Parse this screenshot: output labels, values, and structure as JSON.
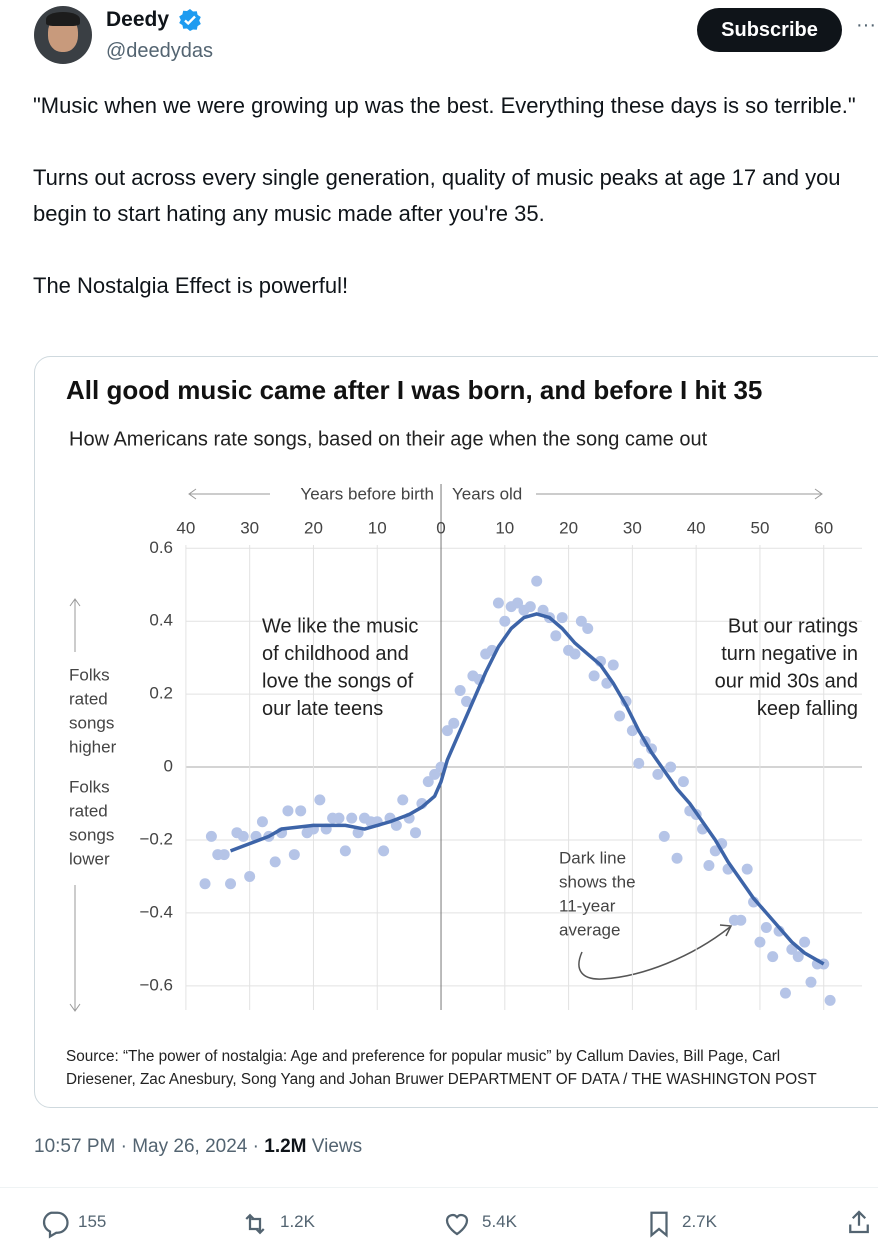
{
  "tweet": {
    "author": "Deedy",
    "handle": "@deedydas",
    "subscribe": "Subscribe",
    "more": "···",
    "paragraphs": [
      "\"Music when we were growing up was the best. Everything these days is so terrible.\"",
      "Turns out across every single generation, quality of music peaks at age 17 and you begin to start hating any music made after you're 35.",
      "The Nostalgia Effect is powerful!"
    ],
    "time": "10:57 PM",
    "separator": "·",
    "date": "May 26, 2024",
    "views": "1.2M",
    "views_label": "Views",
    "replies": "155",
    "reposts": "1.2K",
    "likes": "5.4K",
    "bookmarks": "2.7K"
  },
  "chart_data": {
    "type": "scatter",
    "title": "All good music came after I was born, and before I hit 35",
    "subtitle": "How Americans rate songs, based on their age when the song came out",
    "x_label_left": "Years before birth",
    "x_label_right": "Years old",
    "y_label_upper": [
      "Folks",
      "rated",
      "songs",
      "higher"
    ],
    "y_label_lower": [
      "Folks",
      "rated",
      "songs",
      "lower"
    ],
    "xlim": [
      -45,
      66
    ],
    "xticks": [
      {
        "value": -40,
        "label": "40"
      },
      {
        "value": -30,
        "label": "30"
      },
      {
        "value": -20,
        "label": "20"
      },
      {
        "value": -10,
        "label": "10"
      },
      0,
      10,
      20,
      30,
      40,
      50,
      60
    ],
    "ylim": [
      -0.68,
      0.62
    ],
    "yticks": [
      0.6,
      0.4,
      0.2,
      0,
      {
        "value": -0.2,
        "label": "−0.2"
      },
      {
        "value": -0.4,
        "label": "−0.4"
      },
      {
        "value": -0.6,
        "label": "−0.6"
      }
    ],
    "grid": true,
    "series": [
      {
        "style": "markers",
        "color": "#b5c4e7",
        "x": [
          -37,
          -36,
          -35,
          -34,
          -33,
          -32,
          -31,
          -30,
          -29,
          -28,
          -27,
          -26,
          -25,
          -24,
          -23,
          -22,
          -21,
          -20,
          -19,
          -18,
          -17,
          -16,
          -15,
          -14,
          -13,
          -12,
          -11,
          -10,
          -9,
          -8,
          -7,
          -6,
          -5,
          -4,
          -3,
          -2,
          -1,
          0,
          1,
          2,
          3,
          4,
          5,
          6,
          7,
          8,
          9,
          10,
          11,
          12,
          13,
          14,
          15,
          16,
          17,
          18,
          19,
          20,
          21,
          22,
          23,
          24,
          25,
          26,
          27,
          28,
          29,
          30,
          31,
          32,
          33,
          34,
          35,
          36,
          37,
          38,
          39,
          40,
          41,
          42,
          43,
          44,
          45,
          46,
          47,
          48,
          49,
          50,
          51,
          52,
          53,
          54,
          55,
          56,
          57,
          58,
          59,
          60,
          61
        ],
        "values": [
          -0.32,
          -0.19,
          -0.24,
          -0.24,
          -0.32,
          -0.18,
          -0.19,
          -0.3,
          -0.19,
          -0.15,
          -0.19,
          -0.26,
          -0.18,
          -0.12,
          -0.24,
          -0.12,
          -0.18,
          -0.17,
          -0.09,
          -0.17,
          -0.14,
          -0.14,
          -0.23,
          -0.14,
          -0.18,
          -0.14,
          -0.15,
          -0.15,
          -0.23,
          -0.14,
          -0.16,
          -0.09,
          -0.14,
          -0.18,
          -0.1,
          -0.04,
          -0.02,
          0,
          0.1,
          0.12,
          0.21,
          0.18,
          0.25,
          0.24,
          0.31,
          0.32,
          0.45,
          0.4,
          0.44,
          0.45,
          0.43,
          0.44,
          0.51,
          0.43,
          0.41,
          0.36,
          0.41,
          0.32,
          0.31,
          0.4,
          0.38,
          0.25,
          0.29,
          0.23,
          0.28,
          0.14,
          0.18,
          0.1,
          0.01,
          0.07,
          0.05,
          -0.02,
          -0.19,
          0,
          -0.25,
          -0.04,
          -0.12,
          -0.13,
          -0.17,
          -0.27,
          -0.23,
          -0.21,
          -0.28,
          -0.42,
          -0.42,
          -0.28,
          -0.37,
          -0.48,
          -0.44,
          -0.52,
          -0.45,
          -0.62,
          -0.5,
          -0.52,
          -0.48,
          -0.59,
          -0.54,
          -0.54,
          -0.64
        ]
      },
      {
        "style": "line",
        "color": "#3d64a8",
        "x": [
          -33,
          -30,
          -27,
          -25,
          -20,
          -15,
          -12,
          -10,
          -8,
          -5,
          -3,
          -1,
          0,
          1,
          3,
          5,
          7,
          9,
          11,
          13,
          15,
          17,
          19,
          21,
          23,
          25,
          27,
          29,
          31,
          33,
          35,
          37,
          39,
          41,
          43,
          45,
          47,
          49,
          51,
          53,
          55,
          57,
          59,
          60
        ],
        "values": [
          -0.23,
          -0.21,
          -0.19,
          -0.17,
          -0.16,
          -0.16,
          -0.17,
          -0.16,
          -0.15,
          -0.13,
          -0.11,
          -0.08,
          -0.04,
          0.02,
          0.1,
          0.18,
          0.26,
          0.33,
          0.38,
          0.41,
          0.42,
          0.41,
          0.38,
          0.34,
          0.31,
          0.28,
          0.23,
          0.17,
          0.1,
          0.04,
          -0.01,
          -0.06,
          -0.1,
          -0.15,
          -0.2,
          -0.26,
          -0.31,
          -0.36,
          -0.4,
          -0.44,
          -0.48,
          -0.51,
          -0.53,
          -0.54
        ]
      }
    ],
    "annotations": [
      {
        "lines": [
          "We like the music",
          "of childhood and",
          "love the songs of",
          "our late teens"
        ]
      },
      {
        "lines": [
          "But our ratings",
          "turn negative in",
          "our mid 30s and",
          "keep falling"
        ]
      },
      {
        "lines": [
          "Dark line",
          "shows the",
          "11-year",
          "average"
        ]
      }
    ],
    "source": [
      "Source: “The power of nostalgia: Age and preference for popular music” by Callum Davies, Bill Page, Carl",
      "Driesener, Zac Anesbury, Song Yang and Johan Bruwer DEPARTMENT OF DATA / THE WASHINGTON POST"
    ]
  }
}
